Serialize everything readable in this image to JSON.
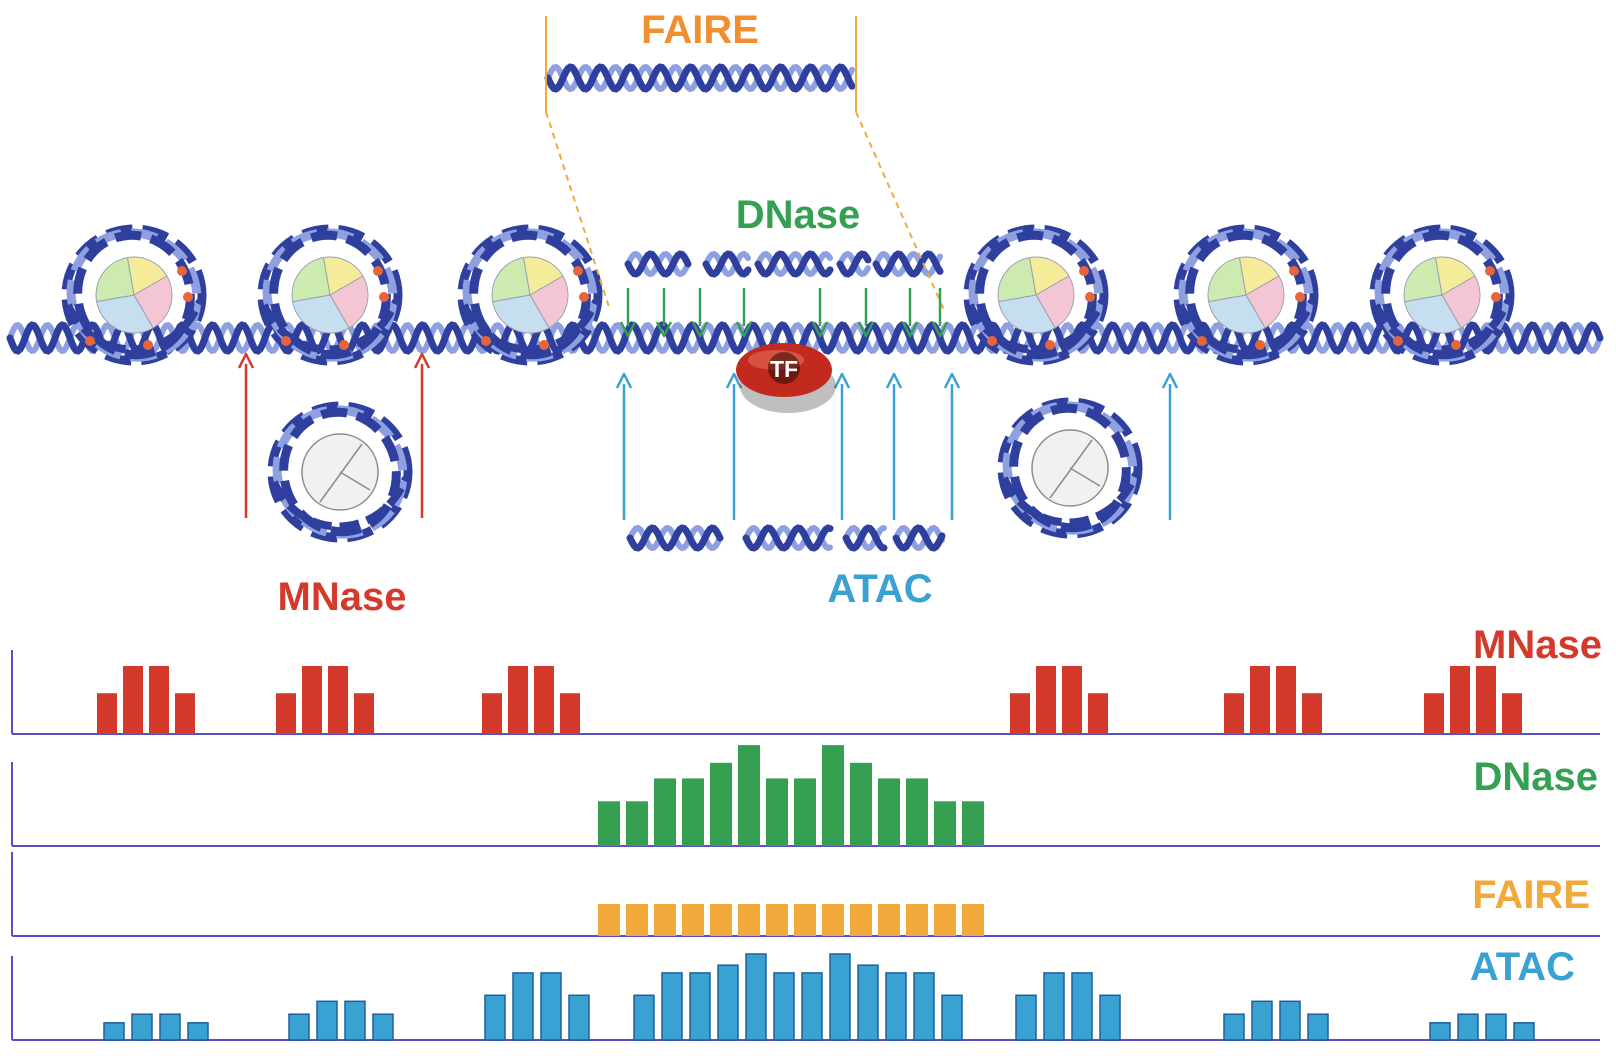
{
  "labels": {
    "faire_top": "FAIRE",
    "dnase_top": "DNase",
    "mnase_mid": "MNase",
    "atac_mid": "ATAC",
    "tf": "TF"
  },
  "tracks": {
    "mnase": "MNase",
    "dnase": "DNase",
    "faire": "FAIRE",
    "atac": "ATAC"
  },
  "colors": {
    "mnase": "#d33a2c",
    "dnase": "#35a052",
    "faire": "#f2a93b",
    "faire_label": "#ef8f2f",
    "atac": "#3aa2d3",
    "dna_dark": "#2e3f9e",
    "dna_light": "#8fa0e0",
    "axis": "#5b4fc4",
    "tf": "#c22a1e"
  },
  "chart_data": [
    {
      "type": "bar",
      "track": "MNase",
      "groups": [
        {
          "values": [
            0.6,
            1,
            1,
            0.6
          ]
        },
        {
          "values": [
            0.6,
            1,
            1,
            0.6
          ]
        },
        {
          "values": [
            0.6,
            1,
            1,
            0.6
          ]
        },
        {
          "values": [
            0.6,
            1,
            1,
            0.6
          ]
        },
        {
          "values": [
            0.6,
            1,
            1,
            0.6
          ]
        },
        {
          "values": [
            0.6,
            1,
            1,
            0.6
          ]
        }
      ]
    },
    {
      "type": "bar",
      "track": "DNase",
      "values": [
        0.43,
        0.43,
        0.65,
        0.65,
        0.8,
        0.97,
        0.65,
        0.65,
        0.97,
        0.8,
        0.65,
        0.65,
        0.43,
        0.43
      ]
    },
    {
      "type": "bar",
      "track": "FAIRE",
      "values": [
        1,
        1,
        1,
        1,
        1,
        1,
        1,
        1,
        1,
        1,
        1,
        1,
        1,
        1
      ]
    },
    {
      "type": "bar",
      "track": "ATAC",
      "groups": [
        {
          "values": [
            0.2,
            0.3,
            0.3,
            0.2
          ]
        },
        {
          "values": [
            0.3,
            0.45,
            0.45,
            0.3
          ]
        },
        {
          "values": [
            0.52,
            0.78,
            0.78,
            0.52
          ]
        },
        {
          "values": [
            0.52,
            0.78,
            0.78,
            0.87,
            1,
            0.78,
            0.78,
            1,
            0.87,
            0.78,
            0.78,
            0.52
          ]
        },
        {
          "values": [
            0.52,
            0.78,
            0.78,
            0.52
          ]
        },
        {
          "values": [
            0.3,
            0.45,
            0.45,
            0.3
          ]
        },
        {
          "values": [
            0.2,
            0.3,
            0.3,
            0.2
          ]
        }
      ]
    }
  ]
}
